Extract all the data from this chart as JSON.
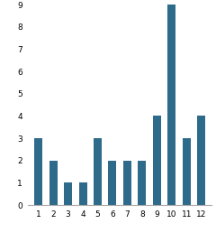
{
  "categories": [
    1,
    2,
    3,
    4,
    5,
    6,
    7,
    8,
    9,
    10,
    11,
    12
  ],
  "values": [
    3,
    2,
    1,
    1,
    3,
    2,
    2,
    2,
    4,
    9,
    3,
    4
  ],
  "bar_color": "#2e6a8a",
  "ylim": [
    0,
    9
  ],
  "yticks": [
    0,
    1,
    2,
    3,
    4,
    5,
    6,
    7,
    8,
    9
  ],
  "xlabel": "",
  "ylabel": "",
  "title": "",
  "background_color": "#ffffff",
  "bar_width": 0.55,
  "tick_fontsize": 6.5
}
